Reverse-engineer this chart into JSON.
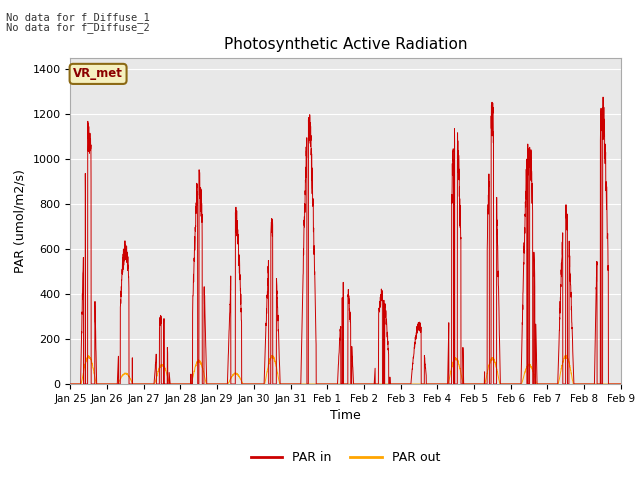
{
  "title": "Photosynthetic Active Radiation",
  "ylabel": "PAR (umol/m2/s)",
  "xlabel": "Time",
  "ylim": [
    0,
    1450
  ],
  "background_color": "#e8e8e8",
  "par_in_color": "#cc0000",
  "par_out_color": "#ffa500",
  "text_line1": "No data for f_Diffuse_1",
  "text_line2": "No data for f_Diffuse_2",
  "legend_box_label": "VR_met",
  "xtick_labels": [
    "Jan 25",
    "Jan 26",
    "Jan 27",
    "Jan 28",
    "Jan 29",
    "Jan 30",
    "Jan 31",
    "Feb 1",
    "Feb 2",
    "Feb 3",
    "Feb 4",
    "Feb 5",
    "Feb 6",
    "Feb 7",
    "Feb 8",
    "Feb 9"
  ],
  "day_peaks_in": [
    1190,
    650,
    325,
    960,
    800,
    750,
    1230,
    510,
    430,
    280,
    1250,
    1260,
    1120,
    820,
    1290,
    0
  ],
  "day_peaks_out": [
    130,
    50,
    90,
    110,
    50,
    130,
    0,
    0,
    0,
    0,
    120,
    120,
    90,
    130,
    0,
    0
  ],
  "figsize": [
    6.4,
    4.8
  ],
  "dpi": 100
}
